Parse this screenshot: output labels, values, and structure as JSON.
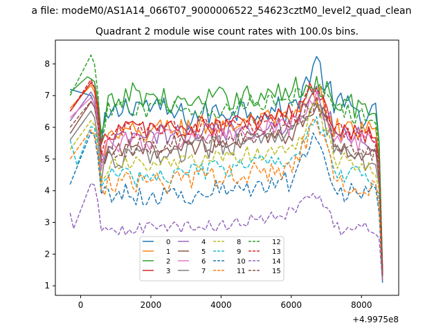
{
  "figure": {
    "suptitle": "a file: modeM0/AS1A14_066T07_9000006522_54623cztM0_level2_quad_clean",
    "title": "Quadrant 2 module wise count rates with 100.0s bins.",
    "x_offset_label": "+4.9975e8"
  },
  "chart_data": {
    "type": "line",
    "title": "Quadrant 2 module wise count rates with 100.0s bins.",
    "xlabel": "",
    "ylabel": "",
    "xlim": [
      -720,
      9060
    ],
    "ylim": [
      0.7,
      8.75
    ],
    "x_offset": 499750000,
    "xticks": [
      0,
      2000,
      4000,
      6000,
      8000
    ],
    "yticks": [
      1,
      2,
      3,
      4,
      5,
      6,
      7,
      8
    ],
    "grid": false,
    "legend_position": "lower-center",
    "legend_columns": 4,
    "x_start": -300,
    "x_end": 8600,
    "points": 90,
    "series": [
      {
        "name": "0",
        "color": "#1f77b4",
        "style": "solid",
        "anchors": [
          [
            -300,
            7.2
          ],
          [
            300,
            7.0
          ],
          [
            500,
            6.4
          ],
          [
            620,
            5.0
          ],
          [
            700,
            6.2
          ],
          [
            1500,
            6.8
          ],
          [
            3000,
            6.3
          ],
          [
            4500,
            6.6
          ],
          [
            6000,
            6.5
          ],
          [
            6700,
            8.1
          ],
          [
            7200,
            6.8
          ],
          [
            8000,
            6.4
          ],
          [
            8480,
            6.4
          ],
          [
            8600,
            1.4
          ]
        ],
        "noise": 0.45
      },
      {
        "name": "1",
        "color": "#ff7f0e",
        "style": "solid",
        "anchors": [
          [
            -300,
            6.6
          ],
          [
            350,
            7.4
          ],
          [
            500,
            6.4
          ],
          [
            620,
            4.6
          ],
          [
            720,
            5.6
          ],
          [
            2000,
            5.9
          ],
          [
            4000,
            6.1
          ],
          [
            6000,
            6.2
          ],
          [
            6800,
            7.0
          ],
          [
            7200,
            6.0
          ],
          [
            8000,
            5.9
          ],
          [
            8480,
            5.8
          ],
          [
            8600,
            1.5
          ]
        ],
        "noise": 0.4
      },
      {
        "name": "2",
        "color": "#2ca02c",
        "style": "solid",
        "anchors": [
          [
            -300,
            7.1
          ],
          [
            200,
            7.6
          ],
          [
            450,
            7.4
          ],
          [
            620,
            5.2
          ],
          [
            720,
            6.6
          ],
          [
            1500,
            7.1
          ],
          [
            3000,
            6.7
          ],
          [
            4500,
            7.0
          ],
          [
            5500,
            7.0
          ],
          [
            6700,
            7.4
          ],
          [
            7500,
            6.8
          ],
          [
            8480,
            6.4
          ],
          [
            8600,
            1.5
          ]
        ],
        "noise": 0.4
      },
      {
        "name": "3",
        "color": "#d62728",
        "style": "solid",
        "anchors": [
          [
            -300,
            6.5
          ],
          [
            350,
            7.5
          ],
          [
            500,
            6.6
          ],
          [
            620,
            4.8
          ],
          [
            720,
            5.9
          ],
          [
            2000,
            6.0
          ],
          [
            4000,
            6.0
          ],
          [
            6000,
            6.4
          ],
          [
            6700,
            7.3
          ],
          [
            7300,
            6.0
          ],
          [
            8480,
            5.8
          ],
          [
            8600,
            1.4
          ]
        ],
        "noise": 0.35
      },
      {
        "name": "4",
        "color": "#9467bd",
        "style": "solid",
        "anchors": [
          [
            -300,
            6.2
          ],
          [
            350,
            7.2
          ],
          [
            500,
            6.2
          ],
          [
            620,
            4.5
          ],
          [
            720,
            5.5
          ],
          [
            2000,
            5.7
          ],
          [
            4000,
            5.9
          ],
          [
            6000,
            6.1
          ],
          [
            6700,
            7.1
          ],
          [
            7300,
            5.9
          ],
          [
            8480,
            5.5
          ],
          [
            8600,
            1.4
          ]
        ],
        "noise": 0.35
      },
      {
        "name": "5",
        "color": "#8c564b",
        "style": "solid",
        "anchors": [
          [
            -300,
            5.8
          ],
          [
            350,
            6.9
          ],
          [
            500,
            6.0
          ],
          [
            620,
            4.3
          ],
          [
            720,
            5.2
          ],
          [
            2000,
            5.3
          ],
          [
            4000,
            5.5
          ],
          [
            6000,
            5.8
          ],
          [
            6700,
            6.8
          ],
          [
            7300,
            5.4
          ],
          [
            8480,
            5.0
          ],
          [
            8600,
            1.3
          ]
        ],
        "noise": 0.3
      },
      {
        "name": "6",
        "color": "#e377c2",
        "style": "solid",
        "anchors": [
          [
            -300,
            6.3
          ],
          [
            350,
            7.0
          ],
          [
            500,
            6.1
          ],
          [
            620,
            4.6
          ],
          [
            720,
            5.5
          ],
          [
            2000,
            5.6
          ],
          [
            4000,
            5.7
          ],
          [
            6000,
            6.0
          ],
          [
            6700,
            6.9
          ],
          [
            7300,
            5.6
          ],
          [
            8480,
            5.4
          ],
          [
            8600,
            1.4
          ]
        ],
        "noise": 0.35
      },
      {
        "name": "7",
        "color": "#7f7f7f",
        "style": "solid",
        "anchors": [
          [
            -300,
            5.6
          ],
          [
            350,
            6.6
          ],
          [
            500,
            5.6
          ],
          [
            620,
            4.2
          ],
          [
            720,
            5.0
          ],
          [
            2000,
            5.1
          ],
          [
            4000,
            5.4
          ],
          [
            6000,
            5.7
          ],
          [
            6700,
            6.8
          ],
          [
            7300,
            5.2
          ],
          [
            8480,
            4.8
          ],
          [
            8600,
            1.3
          ]
        ],
        "noise": 0.35
      },
      {
        "name": "8",
        "color": "#bcbd22",
        "style": "dashed",
        "anchors": [
          [
            -300,
            5.3
          ],
          [
            350,
            6.3
          ],
          [
            500,
            5.5
          ],
          [
            620,
            4.1
          ],
          [
            720,
            4.8
          ],
          [
            2000,
            4.8
          ],
          [
            4000,
            5.0
          ],
          [
            6000,
            5.3
          ],
          [
            6700,
            6.6
          ],
          [
            7300,
            5.0
          ],
          [
            8480,
            4.6
          ],
          [
            8600,
            1.3
          ]
        ],
        "noise": 0.3
      },
      {
        "name": "9",
        "color": "#17becf",
        "style": "dashed",
        "anchors": [
          [
            -300,
            5.6
          ],
          [
            -100,
            4.8
          ],
          [
            350,
            6.2
          ],
          [
            500,
            5.4
          ],
          [
            620,
            3.9
          ],
          [
            720,
            4.5
          ],
          [
            2000,
            4.4
          ],
          [
            4000,
            4.7
          ],
          [
            6000,
            5.0
          ],
          [
            6700,
            6.4
          ],
          [
            7300,
            4.6
          ],
          [
            8480,
            4.4
          ],
          [
            8600,
            1.2
          ]
        ],
        "noise": 0.3
      },
      {
        "name": "10",
        "color": "#1f77b4",
        "style": "dashed",
        "anchors": [
          [
            -300,
            4.2
          ],
          [
            350,
            6.0
          ],
          [
            500,
            5.0
          ],
          [
            620,
            3.7
          ],
          [
            720,
            4.0
          ],
          [
            2000,
            3.8
          ],
          [
            4000,
            4.0
          ],
          [
            6000,
            4.3
          ],
          [
            6700,
            6.0
          ],
          [
            7300,
            4.0
          ],
          [
            8480,
            3.8
          ],
          [
            8600,
            1.1
          ]
        ],
        "noise": 0.35
      },
      {
        "name": "11",
        "color": "#ff7f0e",
        "style": "dashed",
        "anchors": [
          [
            -300,
            5.0
          ],
          [
            350,
            6.0
          ],
          [
            500,
            5.2
          ],
          [
            620,
            3.8
          ],
          [
            720,
            4.3
          ],
          [
            2000,
            4.2
          ],
          [
            4000,
            4.5
          ],
          [
            6000,
            4.7
          ],
          [
            6700,
            6.2
          ],
          [
            7300,
            4.3
          ],
          [
            8480,
            4.1
          ],
          [
            8600,
            1.2
          ]
        ],
        "noise": 0.35
      },
      {
        "name": "12",
        "color": "#2ca02c",
        "style": "dashed",
        "anchors": [
          [
            -300,
            7.0
          ],
          [
            350,
            8.4
          ],
          [
            500,
            7.0
          ],
          [
            620,
            5.1
          ],
          [
            720,
            6.5
          ],
          [
            2000,
            6.6
          ],
          [
            4000,
            6.6
          ],
          [
            6000,
            6.9
          ],
          [
            6700,
            7.5
          ],
          [
            7300,
            6.6
          ],
          [
            8480,
            6.1
          ],
          [
            8600,
            1.5
          ]
        ],
        "noise": 0.3
      },
      {
        "name": "13",
        "color": "#d62728",
        "style": "dashed",
        "anchors": [
          [
            -300,
            6.5
          ],
          [
            350,
            7.6
          ],
          [
            500,
            6.4
          ],
          [
            620,
            4.7
          ],
          [
            720,
            5.8
          ],
          [
            2000,
            5.9
          ],
          [
            4000,
            6.0
          ],
          [
            6000,
            6.2
          ],
          [
            6700,
            7.2
          ],
          [
            7300,
            5.9
          ],
          [
            8480,
            5.6
          ],
          [
            8600,
            1.4
          ]
        ],
        "noise": 0.3
      },
      {
        "name": "14",
        "color": "#9467bd",
        "style": "dashed",
        "anchors": [
          [
            -300,
            3.3
          ],
          [
            -200,
            2.8
          ],
          [
            350,
            4.4
          ],
          [
            500,
            3.6
          ],
          [
            620,
            2.4
          ],
          [
            720,
            2.8
          ],
          [
            2000,
            2.8
          ],
          [
            4000,
            2.9
          ],
          [
            6000,
            3.3
          ],
          [
            6700,
            3.9
          ],
          [
            7300,
            2.8
          ],
          [
            8480,
            2.8
          ],
          [
            8600,
            1.1
          ]
        ],
        "noise": 0.2
      },
      {
        "name": "15",
        "color": "#8c564b",
        "style": "dashed",
        "anchors": [
          [
            -300,
            6.0
          ],
          [
            350,
            6.9
          ],
          [
            500,
            6.0
          ],
          [
            620,
            4.4
          ],
          [
            720,
            5.3
          ],
          [
            2000,
            5.4
          ],
          [
            4000,
            5.6
          ],
          [
            6000,
            5.9
          ],
          [
            6700,
            6.9
          ],
          [
            7300,
            5.5
          ],
          [
            8480,
            5.2
          ],
          [
            8600,
            1.3
          ]
        ],
        "noise": 0.3
      }
    ]
  }
}
